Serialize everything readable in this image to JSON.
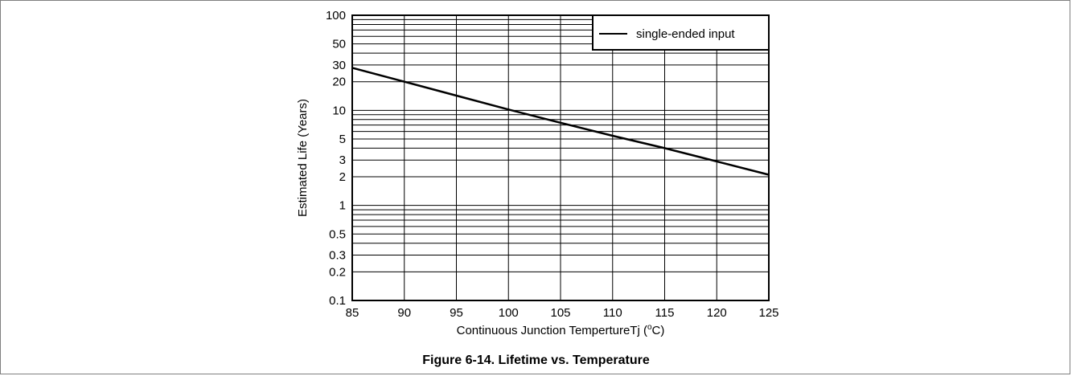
{
  "figure": {
    "caption": "Figure 6-14. Lifetime vs. Temperature"
  },
  "chart_data": {
    "type": "line",
    "title": "",
    "xlabel_prefix": "Continuous Junction TempertureTj (",
    "xlabel_sup": "o",
    "xlabel_suffix": "C)",
    "ylabel": "Estimated Life (Years)",
    "xlim": [
      85,
      125
    ],
    "ylim": [
      0.1,
      100
    ],
    "yscale": "log",
    "x_ticks": [
      85,
      90,
      95,
      100,
      105,
      110,
      115,
      120,
      125
    ],
    "y_tick_labels": [
      {
        "value": 0.1,
        "label": "0.1"
      },
      {
        "value": 0.2,
        "label": "0.2"
      },
      {
        "value": 0.3,
        "label": "0.3"
      },
      {
        "value": 0.5,
        "label": "0.5"
      },
      {
        "value": 1,
        "label": "1"
      },
      {
        "value": 2,
        "label": "2"
      },
      {
        "value": 3,
        "label": "3"
      },
      {
        "value": 5,
        "label": "5"
      },
      {
        "value": 10,
        "label": "10"
      },
      {
        "value": 20,
        "label": "20"
      },
      {
        "value": 30,
        "label": "30"
      },
      {
        "value": 50,
        "label": "50"
      },
      {
        "value": 100,
        "label": "100"
      }
    ],
    "grid": true,
    "legend_position": "top-right",
    "series": [
      {
        "name": "single-ended input",
        "color": "#000000",
        "x": [
          85,
          90,
          95,
          100,
          105,
          110,
          115,
          120,
          125
        ],
        "y": [
          28,
          20,
          14.3,
          10.2,
          7.4,
          5.4,
          4.0,
          2.9,
          2.1
        ]
      }
    ]
  }
}
